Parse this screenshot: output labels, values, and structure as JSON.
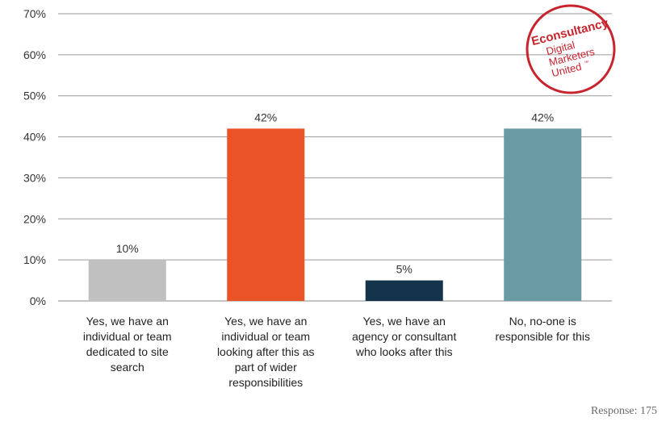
{
  "chart_data": {
    "type": "bar",
    "categories": [
      "Yes, we have an\nindividual or team\ndedicated to site\nsearch",
      "Yes, we have an\nindividual or team\nlooking after this as\npart of wider\nresponsibilities",
      "Yes, we have an\nagency or consultant\nwho looks after this",
      "No, no-one is\nresponsible for this"
    ],
    "values": [
      10,
      42,
      5,
      42
    ],
    "data_labels": [
      "10%",
      "42%",
      "5%",
      "42%"
    ],
    "colors": [
      "#c0c0c0",
      "#ea5326",
      "#13344a",
      "#6a9aa4"
    ],
    "ylim": [
      0,
      70
    ],
    "y_ticks": [
      0,
      10,
      20,
      30,
      40,
      50,
      60,
      70
    ],
    "y_tick_labels": [
      "0%",
      "10%",
      "20%",
      "30%",
      "40%",
      "50%",
      "60%",
      "70%"
    ],
    "grid": true,
    "legend": "none"
  },
  "footer": {
    "response": "Response: 175"
  },
  "logo": {
    "brand": "Econsultancy",
    "lines": [
      "Digital",
      "Marketers",
      "United"
    ],
    "trademark": "™",
    "color": "#c8242e",
    "icon": "econsultancy-stamp-icon"
  }
}
